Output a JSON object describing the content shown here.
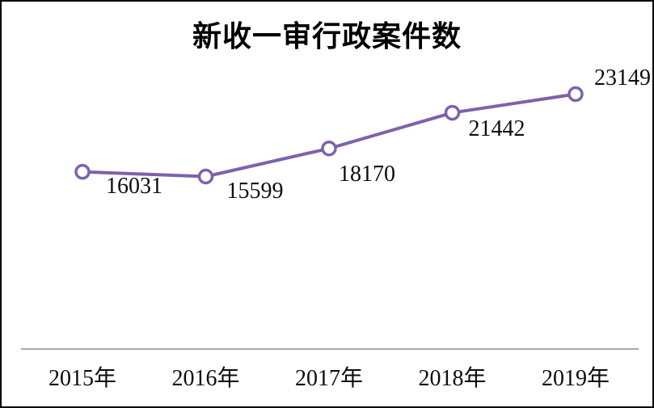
{
  "window": {
    "background": "#ffffff",
    "frame_border_color": "#000000"
  },
  "chart_data": {
    "type": "line",
    "title": "新收一审行政案件数",
    "categories": [
      "2015年",
      "2016年",
      "2017年",
      "2018年",
      "2019年"
    ],
    "values": [
      16031,
      15599,
      18170,
      21442,
      23149
    ],
    "data_labels": [
      "16031",
      "15599",
      "18170",
      "21442",
      "23149"
    ],
    "xlabel": "",
    "ylabel": "",
    "ylim": [
      0,
      25000
    ],
    "grid": false,
    "legend": false,
    "line_color": "#7D62AC",
    "marker_fill": "#FFFFFF",
    "marker_stroke": "#7D62AC",
    "axis_line_color": "#8C8C8C",
    "label_color": "#0d0d0d"
  }
}
